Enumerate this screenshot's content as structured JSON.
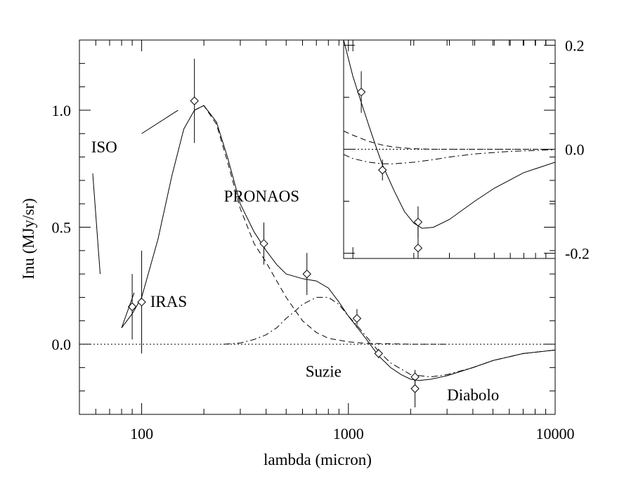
{
  "chart_data": [
    {
      "id": "main",
      "type": "line",
      "xlabel": "lambda (micron)",
      "ylabel": "Inu (MJy/sr)",
      "x_scale": "log",
      "xlim": [
        50,
        10000
      ],
      "ylim": [
        -0.3,
        1.3
      ],
      "x_ticks": [
        {
          "value": 100,
          "label": "100"
        },
        {
          "value": 1000,
          "label": "1000"
        },
        {
          "value": 10000,
          "label": "10000"
        }
      ],
      "y_ticks": [
        {
          "value": 0.0,
          "label": "0.0"
        },
        {
          "value": 0.5,
          "label": "0.5"
        },
        {
          "value": 1.0,
          "label": "1.0"
        }
      ],
      "grid": false,
      "series": [
        {
          "style": "solid",
          "x": [
            80,
            90,
            100,
            120,
            140,
            160,
            180,
            200,
            230,
            260,
            300,
            350,
            400,
            450,
            500,
            600,
            700,
            800,
            900,
            1000,
            1200,
            1400,
            1600,
            1800,
            2000,
            2200,
            2500,
            3000,
            4000,
            5000,
            7000,
            10000
          ],
          "y": [
            0.07,
            0.13,
            0.2,
            0.45,
            0.72,
            0.92,
            1.0,
            1.02,
            0.95,
            0.8,
            0.6,
            0.48,
            0.4,
            0.34,
            0.3,
            0.28,
            0.27,
            0.24,
            0.18,
            0.12,
            0.03,
            -0.05,
            -0.1,
            -0.13,
            -0.15,
            -0.155,
            -0.15,
            -0.135,
            -0.1,
            -0.07,
            -0.04,
            -0.025
          ]
        },
        {
          "style": "dashed",
          "x": [
            180,
            200,
            230,
            260,
            300,
            350,
            400,
            450,
            500,
            600,
            700,
            800,
            1000,
            1200,
            1500,
            2000,
            2500,
            3000
          ],
          "y": [
            1.0,
            1.02,
            0.94,
            0.78,
            0.58,
            0.43,
            0.35,
            0.27,
            0.2,
            0.1,
            0.05,
            0.025,
            0.01,
            0.004,
            0.002,
            0.0,
            0.0,
            0.0
          ]
        },
        {
          "style": "dash-dot",
          "x": [
            250,
            300,
            350,
            400,
            450,
            500,
            550,
            600,
            700,
            800,
            900,
            1000,
            1100,
            1200,
            1400,
            1600,
            2000,
            2500,
            3000,
            4000,
            5000,
            7000,
            10000
          ],
          "y": [
            0.0,
            0.005,
            0.02,
            0.04,
            0.07,
            0.11,
            0.14,
            0.17,
            0.2,
            0.2,
            0.17,
            0.12,
            0.08,
            0.04,
            -0.03,
            -0.08,
            -0.13,
            -0.14,
            -0.13,
            -0.1,
            -0.07,
            -0.04,
            -0.025
          ]
        },
        {
          "style": "dotted",
          "x": [
            50,
            10000
          ],
          "y": [
            0.0,
            0.0
          ]
        }
      ],
      "points": [
        {
          "x": 90,
          "y": 0.16,
          "err_lo": 0.02,
          "err_hi": 0.3
        },
        {
          "x": 100,
          "y": 0.18,
          "err_lo": -0.04,
          "err_hi": 0.4
        },
        {
          "x": 180,
          "y": 1.04,
          "err_lo": 0.86,
          "err_hi": 1.22
        },
        {
          "x": 390,
          "y": 0.43,
          "err_lo": 0.34,
          "err_hi": 0.52
        },
        {
          "x": 630,
          "y": 0.3,
          "err_lo": 0.21,
          "err_hi": 0.39
        },
        {
          "x": 1100,
          "y": 0.11,
          "err_lo": 0.07,
          "err_hi": 0.15
        },
        {
          "x": 1400,
          "y": -0.04,
          "err_lo": -0.06,
          "err_hi": -0.02
        },
        {
          "x": 2100,
          "y": -0.14,
          "err_lo": -0.17,
          "err_hi": -0.11
        },
        {
          "x": 2100,
          "y": -0.19,
          "err_lo": -0.27,
          "err_hi": -0.15
        }
      ],
      "annotations": [
        {
          "text": "ISO",
          "x": 57,
          "y": 0.82
        },
        {
          "text": "IRAS",
          "x": 110,
          "y": 0.16
        },
        {
          "text": "PRONAOS",
          "x": 250,
          "y": 0.61
        },
        {
          "text": "Suzie",
          "x": 620,
          "y": -0.14
        },
        {
          "text": "Diabolo",
          "x": 3000,
          "y": -0.24
        }
      ],
      "pointer_lines": [
        {
          "x1": 58,
          "y1": 0.73,
          "x2": 63,
          "y2": 0.3
        },
        {
          "x1": 80,
          "y1": 0.07,
          "x2": 92,
          "y2": 0.22
        },
        {
          "x1": 100,
          "y1": 0.9,
          "x2": 150,
          "y2": 1.0
        }
      ]
    },
    {
      "id": "inset",
      "type": "line",
      "x_scale": "log",
      "xlim": [
        900,
        10000
      ],
      "ylim": [
        -0.21,
        0.21
      ],
      "y_axis_position": "right",
      "y_ticks": [
        {
          "value": -0.2,
          "label": "-0.2"
        },
        {
          "value": 0.0,
          "label": "0.0"
        },
        {
          "value": 0.2,
          "label": "0.2"
        }
      ],
      "series": [
        {
          "style": "solid",
          "x": [
            900,
            1000,
            1100,
            1200,
            1300,
            1400,
            1600,
            1800,
            2000,
            2200,
            2500,
            3000,
            4000,
            5000,
            7000,
            10000
          ],
          "y": [
            0.21,
            0.14,
            0.09,
            0.045,
            0.005,
            -0.03,
            -0.08,
            -0.12,
            -0.142,
            -0.152,
            -0.15,
            -0.135,
            -0.1,
            -0.075,
            -0.045,
            -0.025
          ]
        },
        {
          "style": "dashed",
          "x": [
            900,
            1000,
            1200,
            1400,
            1600,
            2000,
            2500,
            3000,
            4000,
            6000,
            10000
          ],
          "y": [
            0.035,
            0.027,
            0.015,
            0.008,
            0.004,
            0.001,
            0.0,
            0.0,
            0.0,
            0.0,
            0.0
          ]
        },
        {
          "style": "dash-dot",
          "x": [
            900,
            1000,
            1200,
            1400,
            1600,
            2000,
            2500,
            3000,
            4000,
            6000,
            10000
          ],
          "y": [
            -0.01,
            -0.018,
            -0.025,
            -0.028,
            -0.028,
            -0.025,
            -0.02,
            -0.015,
            -0.009,
            -0.004,
            -0.001
          ]
        },
        {
          "style": "dotted",
          "x": [
            900,
            10000
          ],
          "y": [
            0.0,
            0.0
          ]
        }
      ],
      "points": [
        {
          "x": 1100,
          "y": 0.11,
          "err_lo": 0.07,
          "err_hi": 0.15
        },
        {
          "x": 1400,
          "y": -0.04,
          "err_lo": -0.06,
          "err_hi": -0.02
        },
        {
          "x": 2100,
          "y": -0.14,
          "err_lo": -0.17,
          "err_hi": -0.11
        },
        {
          "x": 2100,
          "y": -0.19,
          "err_lo": -0.27,
          "err_hi": -0.15
        }
      ]
    }
  ]
}
